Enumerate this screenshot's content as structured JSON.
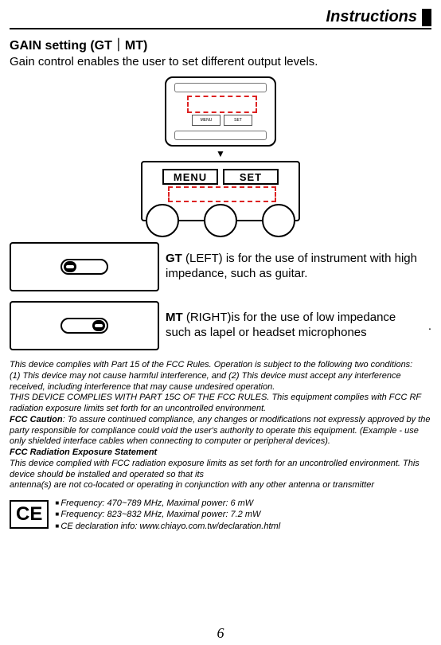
{
  "header": {
    "title": "Instructions"
  },
  "section": {
    "title": "GAIN setting (GT｜MT)",
    "intro": "Gain control enables the user to set different output levels."
  },
  "zoom": {
    "btn_left": "MENU",
    "btn_right": "SET"
  },
  "gt": {
    "label": "GT",
    "text_rest": " (LEFT) is for the use of instrument with high impedance, such as guitar."
  },
  "mt": {
    "label": "MT",
    "text_rest": " (RIGHT)is for the use of low impedance such as lapel or headset microphones",
    "trail": "."
  },
  "legal": {
    "p1": "This device complies with Part 15 of the FCC Rules. Operation is subject to the following two conditions:",
    "p2": "(1) This device may not cause harmful interference, and (2) This device must accept any interference received, including interference that may cause undesired operation.",
    "p3": "THIS DEVICE COMPLIES WITH PART 15C OF THE FCC RULES. This equipment complies with FCC RF radiation exposure limits set forth for an uncontrolled environment.",
    "caution_label": "FCC Caution",
    "caution_text": ": To assure continued compliance, any changes or modifications not expressly approved by the party responsible for compliance could void the user's authority to operate this equipment. (Example - use only shielded interface cables when connecting to computer or peripheral devices).",
    "exposure_label": "FCC Radiation Exposure Statement",
    "exposure_text": "This device complied with FCC radiation exposure limits as set forth for an uncontrolled environment. This device should be installed and operated so that its",
    "exposure_text2": "antenna(s) are not co-located or operating in conjunction with any other antenna or transmitter"
  },
  "ce": {
    "badge": "CE",
    "line1": "Frequency: 470~789 MHz, Maximal power: 6 mW",
    "line2": "Frequency: 823~832 MHz, Maximal power: 7.2 mW",
    "line3": "CE declaration info: www.chiayo.com.tw/declaration.html"
  },
  "page": "6"
}
